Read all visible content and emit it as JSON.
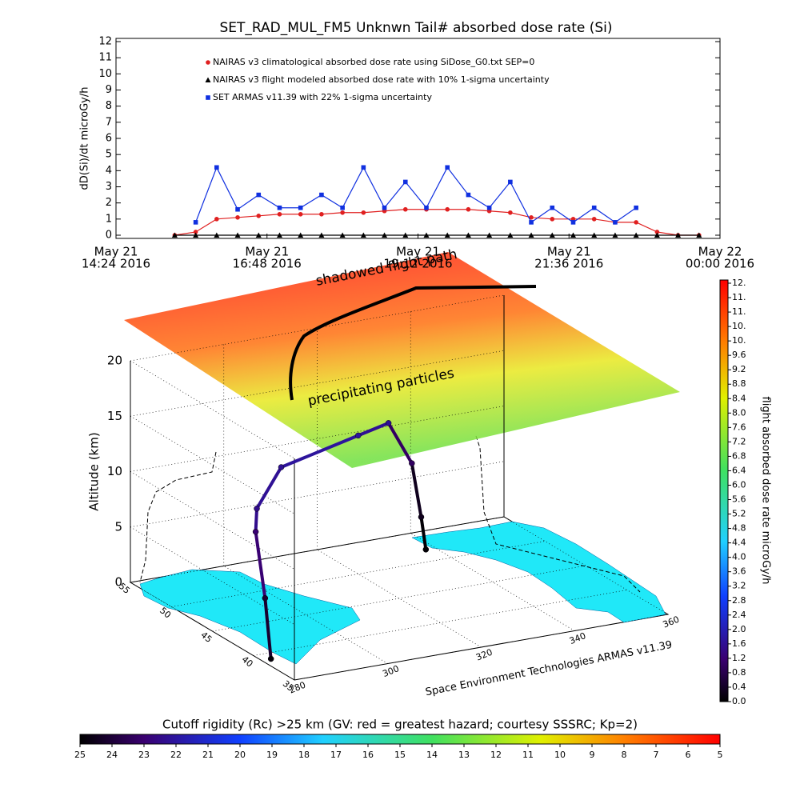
{
  "chart_data": [
    {
      "type": "line",
      "title": "SET_RAD_MUL_FM5 Unknwn Tail#  absorbed dose rate (Si)",
      "ylabel": "dD(Si)/dt microGy/h",
      "x": [
        "2016-05-21 15:20",
        "2016-05-21 15:40",
        "2016-05-21 16:00",
        "2016-05-21 16:20",
        "2016-05-21 16:40",
        "2016-05-21 17:00",
        "2016-05-21 17:20",
        "2016-05-21 17:40",
        "2016-05-21 18:00",
        "2016-05-21 18:20",
        "2016-05-21 18:40",
        "2016-05-21 19:00",
        "2016-05-21 19:20",
        "2016-05-21 19:40",
        "2016-05-21 20:00",
        "2016-05-21 20:20",
        "2016-05-21 20:40",
        "2016-05-21 21:00",
        "2016-05-21 21:20",
        "2016-05-21 21:40",
        "2016-05-21 22:00",
        "2016-05-21 22:20",
        "2016-05-21 22:40",
        "2016-05-21 23:00",
        "2016-05-21 23:20",
        "2016-05-21 23:40"
      ],
      "xlim": [
        "2016-05-21 14:24",
        "2016-05-22 00:00"
      ],
      "xticks": [
        {
          "value": "2016-05-21 14:24",
          "label": [
            "May 21",
            "14:24 2016"
          ]
        },
        {
          "value": "2016-05-21 16:48",
          "label": [
            "May 21",
            "16:48 2016"
          ]
        },
        {
          "value": "2016-05-21 19:12",
          "label": [
            "May 21",
            "19:12 2016"
          ]
        },
        {
          "value": "2016-05-21 21:36",
          "label": [
            "May 21",
            "21:36 2016"
          ]
        },
        {
          "value": "2016-05-22 00:00",
          "label": [
            "May 22",
            "00:00 2016"
          ]
        }
      ],
      "ylim": [
        0,
        12
      ],
      "yticks": [
        0,
        1,
        2,
        3,
        4,
        5,
        6,
        7,
        8,
        9,
        10,
        11,
        12
      ],
      "series": [
        {
          "name": "NAIRAS v3 climatological absorbed dose rate using SiDose_G0.txt SEP=0",
          "color": "#e02020",
          "marker": "circle",
          "values": [
            0,
            0.2,
            1.0,
            1.1,
            1.2,
            1.3,
            1.3,
            1.3,
            1.4,
            1.4,
            1.5,
            1.6,
            1.6,
            1.6,
            1.6,
            1.5,
            1.4,
            1.1,
            1.0,
            1.0,
            1.0,
            0.8,
            0.8,
            0.2,
            0,
            0
          ]
        },
        {
          "name": "NAIRAS v3 flight modeled absorbed dose rate with 10% 1-sigma uncertainty",
          "color": "#000000",
          "marker": "triangle",
          "values": [
            0,
            0,
            0,
            0,
            0,
            0,
            0,
            0,
            0,
            0,
            0,
            0,
            0,
            0,
            0,
            0,
            0,
            0,
            0,
            0,
            0,
            0,
            0,
            0,
            0,
            0
          ]
        },
        {
          "name": "SET ARMAS v11.39 with 22% 1-sigma uncertainty",
          "color": "#1030e0",
          "marker": "square",
          "values": [
            null,
            0.8,
            4.2,
            1.6,
            2.5,
            1.7,
            1.7,
            2.5,
            1.7,
            4.2,
            1.7,
            3.3,
            1.7,
            4.2,
            2.5,
            1.7,
            3.3,
            0.8,
            1.7,
            0.8,
            1.7,
            0.8,
            1.7,
            null,
            null,
            null
          ]
        }
      ]
    },
    {
      "type": "3d-track",
      "zlabel": "Altitude (km)",
      "zlim": [
        0,
        20
      ],
      "zticks": [
        0,
        5,
        10,
        15,
        20
      ],
      "xlim": [
        280,
        360
      ],
      "xticks": [
        280,
        300,
        320,
        340,
        360
      ],
      "ylim": [
        35,
        55
      ],
      "yticks": [
        35,
        40,
        45,
        50,
        55
      ],
      "annotations": [
        "shadowed flight path",
        "precipitating particles"
      ],
      "credit": "Space Environment Technologies ARMAS v11.39",
      "track": {
        "lon": [
          282,
          282.5,
          284,
          286,
          300,
          320,
          330,
          335,
          337,
          338
        ],
        "lat": [
          39,
          40,
          42,
          43,
          48,
          50,
          52,
          52,
          52,
          52
        ],
        "alt": [
          0,
          5,
          10,
          11.5,
          12,
          12.5,
          12,
          8,
          3,
          0
        ],
        "dose": [
          0.1,
          0.5,
          1.2,
          1.5,
          1.6,
          1.7,
          1.6,
          1.0,
          0.3,
          0.05
        ]
      },
      "colorbar": {
        "label": "flight absorbed dose rate microGy/h",
        "lim": [
          0,
          11.6
        ],
        "ticks": [
          {
            "value": 0,
            "label": "0.0"
          },
          0.4,
          0.8,
          1.2,
          1.6,
          {
            "value": 2,
            "label": "2.0"
          },
          2.4,
          2.8,
          3.2,
          3.6,
          {
            "value": 4,
            "label": "4.0"
          },
          4.4,
          4.8,
          5.2,
          5.6,
          {
            "value": 6,
            "label": "6.0"
          },
          6.4,
          6.8,
          7.2,
          7.6,
          {
            "value": 8,
            "label": "8.0"
          },
          8.4,
          8.8,
          9.2,
          9.6,
          {
            "value": 10,
            "label": "10."
          },
          {
            "value": 10.4,
            "label": "10."
          },
          {
            "value": 10.8,
            "label": "11."
          },
          {
            "value": 11.2,
            "label": "11."
          },
          {
            "value": 11.6,
            "label": "12."
          }
        ]
      },
      "rigidity_bar": {
        "label": "Cutoff rigidity (Rc) >25 km (GV: red = greatest hazard; courtesy SSSRC; Kp=2)",
        "lim": [
          25,
          5
        ],
        "ticks": [
          25,
          24,
          23,
          22,
          21,
          20,
          19,
          18,
          17,
          16,
          15,
          14,
          13,
          12,
          11,
          10,
          9,
          8,
          7,
          6,
          5
        ]
      }
    }
  ]
}
